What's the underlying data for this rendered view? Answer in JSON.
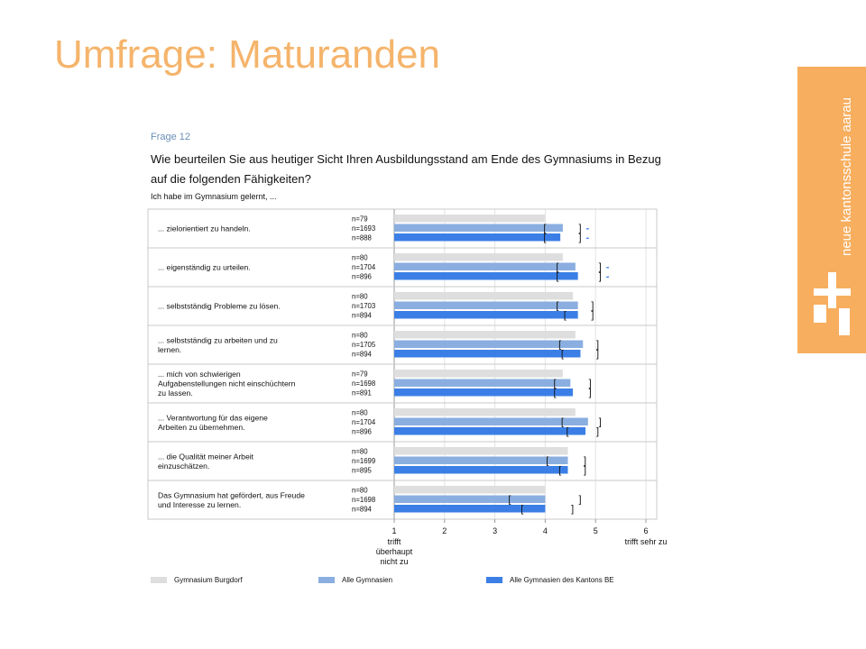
{
  "slide": {
    "title": "Umfrage: Maturanden"
  },
  "brand": {
    "name": "neue kantonsschule aarau",
    "color": "#f7ae5e",
    "icon": "nka-logo-icon"
  },
  "question": {
    "number": "Frage 12",
    "text": "Wie beurteilen Sie aus heutiger Sicht Ihren Ausbildungsstand am Ende des Gymnasiums in Bezug auf die folgenden Fähigkeiten?",
    "subtitle": "Ich habe im Gymnasium gelernt, ..."
  },
  "chart_data": {
    "type": "bar",
    "orientation": "horizontal",
    "xlim": [
      1,
      6
    ],
    "xticks": [
      "1",
      "2",
      "3",
      "4",
      "5",
      "6"
    ],
    "x_low_label": "trifft überhaupt nicht zu",
    "x_high_label": "trifft sehr zu",
    "series": [
      {
        "name": "Gymnasium Burgdorf",
        "color": "#dedede"
      },
      {
        "name": "Alle Gymnasien",
        "color": "#8aaee0"
      },
      {
        "name": "Alle Gymnasien des Kantons BE",
        "color": "#3b7fe6"
      }
    ],
    "items": [
      {
        "label": "... zielorientiert zu handeln.",
        "n": [
          "n=79",
          "n=1693",
          "n=888"
        ],
        "values": [
          4.0,
          4.35,
          4.3
        ],
        "ci": [
          null,
          [
            4.0,
            4.7
          ],
          [
            4.0,
            4.7
          ]
        ],
        "marks": [
          "",
          "-",
          "-"
        ]
      },
      {
        "label": "... eigenständig zu urteilen.",
        "n": [
          "n=80",
          "n=1704",
          "n=896"
        ],
        "values": [
          4.35,
          4.6,
          4.65
        ],
        "ci": [
          null,
          [
            4.25,
            5.1
          ],
          [
            4.25,
            5.1
          ]
        ],
        "marks": [
          "",
          "-",
          "-"
        ]
      },
      {
        "label": "... selbstständig Probleme zu lösen.",
        "n": [
          "n=80",
          "n=1703",
          "n=894"
        ],
        "values": [
          4.55,
          4.65,
          4.65
        ],
        "ci": [
          null,
          [
            4.25,
            4.95
          ],
          [
            4.4,
            4.95
          ]
        ],
        "marks": [
          "",
          "",
          ""
        ]
      },
      {
        "label": "... selbstständig zu arbeiten und zu lernen.",
        "n": [
          "n=80",
          "n=1705",
          "n=894"
        ],
        "values": [
          4.6,
          4.75,
          4.7
        ],
        "ci": [
          null,
          [
            4.3,
            5.05
          ],
          [
            4.35,
            5.05
          ]
        ],
        "marks": [
          "",
          "",
          ""
        ]
      },
      {
        "label": "... mich von schwierigen Aufgabenstellungen nicht einschüchtern zu lassen.",
        "n": [
          "n=79",
          "n=1698",
          "n=891"
        ],
        "values": [
          4.35,
          4.5,
          4.55
        ],
        "ci": [
          null,
          [
            4.2,
            4.9
          ],
          [
            4.2,
            4.9
          ]
        ],
        "marks": [
          "",
          "",
          ""
        ]
      },
      {
        "label": "... Verantwortung für das eigene Arbeiten zu übernehmen.",
        "n": [
          "n=80",
          "n=1704",
          "n=896"
        ],
        "values": [
          4.6,
          4.85,
          4.8
        ],
        "ci": [
          null,
          [
            4.35,
            5.1
          ],
          [
            4.45,
            5.05
          ]
        ],
        "marks": [
          "",
          "",
          ""
        ]
      },
      {
        "label": "... die Qualität meiner Arbeit einzuschätzen.",
        "n": [
          "n=80",
          "n=1699",
          "n=895"
        ],
        "values": [
          4.45,
          4.45,
          4.45
        ],
        "ci": [
          null,
          [
            4.05,
            4.8
          ],
          [
            4.3,
            4.8
          ]
        ],
        "marks": [
          "",
          "",
          ""
        ]
      },
      {
        "label": "Das Gymnasium hat gefördert, aus Freude und Interesse zu lernen.",
        "n": [
          "n=80",
          "n=1698",
          "n=894"
        ],
        "values": [
          4.0,
          4.0,
          4.0
        ],
        "ci": [
          null,
          [
            3.3,
            4.7
          ],
          [
            3.55,
            4.55
          ]
        ],
        "marks": [
          "",
          "",
          ""
        ]
      }
    ]
  }
}
